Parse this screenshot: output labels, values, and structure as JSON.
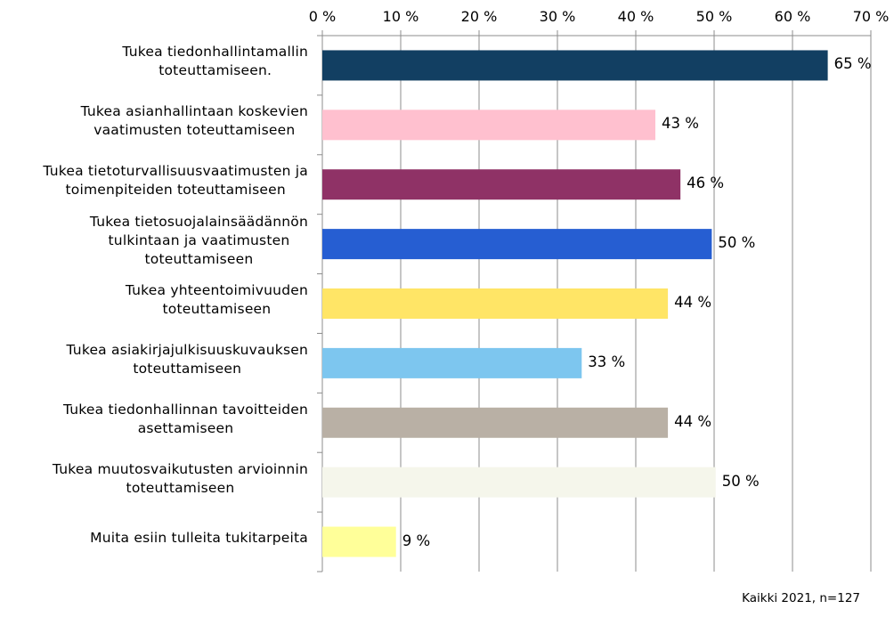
{
  "chart_data": {
    "type": "bar",
    "orientation": "horizontal",
    "categories": [
      "Tukea tiedonhallintamallin\ntoteuttamiseen.",
      "Tukea asianhallintaan koskevien\nvaatimusten toteuttamiseen",
      "Tukea tietoturvallisuusvaatimusten ja\ntoimenpiteiden toteuttamiseen",
      "Tukea tietosuojalainsäädännön\ntulkintaan ja vaatimusten\ntoteuttamiseen",
      "Tukea yhteentoimivuuden\ntoteuttamiseen",
      "Tukea asiakirjajulkisuuskuvauksen\ntoteuttamiseen",
      "Tukea tiedonhallinnan tavoitteiden\nasettamiseen",
      "Tukea muutosvaikutusten arvioinnin\ntoteuttamiseen",
      "Muita esiin tulleita tukitarpeita"
    ],
    "values": [
      65,
      43,
      46,
      50,
      44,
      33,
      44,
      50,
      9
    ],
    "value_labels": [
      "65 %",
      "43 %",
      "46 %",
      "50 %",
      "44 %",
      "33 %",
      "44 %",
      "50 %",
      "9 %"
    ],
    "bar_values": [
      64.5,
      42.5,
      45.7,
      49.7,
      44.1,
      33.1,
      44.1,
      50.2,
      9.4
    ],
    "colors": [
      "#123f62",
      "#ffc0cf",
      "#8f3266",
      "#265ed2",
      "#ffe566",
      "#7dc6ef",
      "#b9b0a5",
      "#f5f6eb",
      "#ffff99"
    ],
    "xlim": [
      0,
      70
    ],
    "x_ticks": [
      "0 %",
      "10 %",
      "20 %",
      "30 %",
      "40 %",
      "50 %",
      "60 %",
      "70 %"
    ],
    "x_axis_position": "top",
    "grid": true,
    "title": "",
    "xlabel": "",
    "ylabel": ""
  },
  "footnote": "Kaikki 2021, n=127"
}
